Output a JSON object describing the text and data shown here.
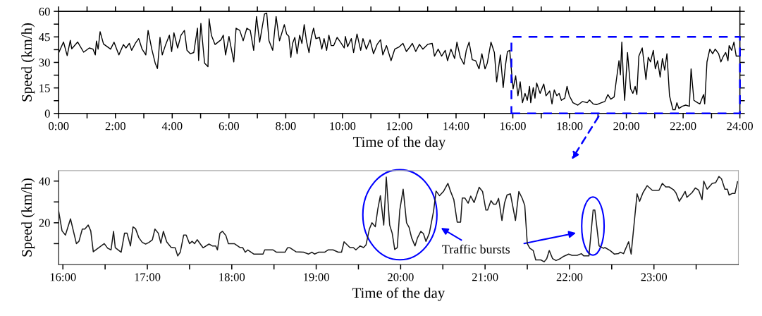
{
  "chart_data": [
    {
      "type": "line",
      "xlabel": "Time of the day",
      "ylabel": "Speed (km/h)",
      "xlim": [
        0,
        24
      ],
      "xticks": [
        {
          "value": 0,
          "label": "0:00"
        },
        {
          "value": 1,
          "label": null
        },
        {
          "value": 2,
          "label": "2:00"
        },
        {
          "value": 3,
          "label": null
        },
        {
          "value": 4,
          "label": "4:00"
        },
        {
          "value": 5,
          "label": null
        },
        {
          "value": 6,
          "label": "6:00"
        },
        {
          "value": 7,
          "label": null
        },
        {
          "value": 8,
          "label": "8:00"
        },
        {
          "value": 9,
          "label": null
        },
        {
          "value": 10,
          "label": "10:00"
        },
        {
          "value": 11,
          "label": null
        },
        {
          "value": 12,
          "label": "12:00"
        },
        {
          "value": 13,
          "label": null
        },
        {
          "value": 14,
          "label": "14:00"
        },
        {
          "value": 15,
          "label": null
        },
        {
          "value": 16,
          "label": "16:00"
        },
        {
          "value": 17,
          "label": null
        },
        {
          "value": 18,
          "label": "18:00"
        },
        {
          "value": 19,
          "label": null
        },
        {
          "value": 20,
          "label": "20:00"
        },
        {
          "value": 21,
          "label": null
        },
        {
          "value": 22,
          "label": "22:00"
        },
        {
          "value": 23,
          "label": null
        },
        {
          "value": 24,
          "label": "24:00"
        }
      ],
      "ylim": [
        0,
        60
      ],
      "yticks": [
        0,
        {
          "value": 7.5,
          "label": null
        },
        15,
        {
          "value": 22.5,
          "label": null
        },
        30,
        {
          "value": 37.5,
          "label": null
        },
        45,
        {
          "value": 52.5,
          "label": null
        },
        60
      ],
      "grid": false,
      "marker": "none",
      "line_style": "solid",
      "series": [
        {
          "color": "#000000",
          "x": [
            0.01,
            0.17,
            0.3,
            0.41,
            0.46,
            0.67,
            0.88,
            1.08,
            1.21,
            1.29,
            1.33,
            1.39,
            1.46,
            1.58,
            1.83,
            1.95,
            2.12,
            2.28,
            2.37,
            2.49,
            2.57,
            2.7,
            2.82,
            2.94,
            3.07,
            3.15,
            3.28,
            3.4,
            3.48,
            3.57,
            3.65,
            3.77,
            3.9,
            3.98,
            4.06,
            4.19,
            4.31,
            4.43,
            4.52,
            4.64,
            4.76,
            4.89,
            4.93,
            5.01,
            5.14,
            5.26,
            5.3,
            5.38,
            5.51,
            5.72,
            5.8,
            5.88,
            6.0,
            6.17,
            6.25,
            6.38,
            6.5,
            6.63,
            6.75,
            6.87,
            6.97,
            7.08,
            7.25,
            7.33,
            7.41,
            7.54,
            7.66,
            7.78,
            7.95,
            8.03,
            8.11,
            8.18,
            8.24,
            8.32,
            8.4,
            8.49,
            8.57,
            8.65,
            8.73,
            8.82,
            8.9,
            8.98,
            9.06,
            9.19,
            9.27,
            9.35,
            9.44,
            9.52,
            9.6,
            9.69,
            9.81,
            9.93,
            10.06,
            10.1,
            10.18,
            10.31,
            10.39,
            10.51,
            10.64,
            10.72,
            10.84,
            10.97,
            11.09,
            11.22,
            11.34,
            11.42,
            11.55,
            11.71,
            11.84,
            12.0,
            12.13,
            12.25,
            12.38,
            12.46,
            12.58,
            12.71,
            12.83,
            13.0,
            13.16,
            13.24,
            13.37,
            13.49,
            13.62,
            13.7,
            13.82,
            13.95,
            14.03,
            14.15,
            14.28,
            14.36,
            14.46,
            14.57,
            14.69,
            14.81,
            14.91,
            15.02,
            15.1,
            15.23,
            15.35,
            15.43,
            15.56,
            15.66,
            15.74,
            15.81,
            15.89,
            15.95,
            16.01,
            16.1,
            16.18,
            16.26,
            16.34,
            16.43,
            16.51,
            16.59,
            16.63,
            16.72,
            16.78,
            16.84,
            16.96,
            17.09,
            17.17,
            17.3,
            17.38,
            17.46,
            17.55,
            17.63,
            17.71,
            17.83,
            17.91,
            17.99,
            18.12,
            18.29,
            18.45,
            18.62,
            18.7,
            18.83,
            18.95,
            19.12,
            19.24,
            19.35,
            19.45,
            19.57,
            19.65,
            19.74,
            19.79,
            19.84,
            19.9,
            19.94,
            20.04,
            20.15,
            20.23,
            20.31,
            20.37,
            20.44,
            20.56,
            20.69,
            20.77,
            20.85,
            20.95,
            21.02,
            21.1,
            21.19,
            21.27,
            21.35,
            21.43,
            21.52,
            21.64,
            21.72,
            21.78,
            21.85,
            21.97,
            22.09,
            22.22,
            22.28,
            22.38,
            22.51,
            22.59,
            22.72,
            22.76,
            22.84,
            22.94,
            23.04,
            23.13,
            23.25,
            23.33,
            23.42,
            23.5,
            23.58,
            23.62,
            23.71,
            23.79,
            23.87,
            23.99
          ],
          "values": [
            36,
            42,
            34,
            43,
            38,
            42,
            36,
            38.5,
            37.8,
            34.4,
            42.6,
            37.8,
            48.1,
            40.8,
            37.8,
            41.9,
            34.4,
            40.5,
            38.5,
            41.2,
            37.1,
            41.2,
            44,
            37.8,
            34.4,
            48.8,
            37.8,
            29.6,
            26.4,
            44.7,
            34.4,
            40.5,
            46,
            36.4,
            47.4,
            38.5,
            46,
            48.8,
            37.1,
            35.1,
            35.8,
            50.1,
            31.1,
            52.9,
            29.6,
            27.5,
            55.6,
            46,
            40.5,
            43.3,
            46,
            34.4,
            45.3,
            30.3,
            50.1,
            48.8,
            42.7,
            50.1,
            48.8,
            37.1,
            57,
            41.9,
            58.4,
            59,
            42.7,
            37.1,
            57,
            42.7,
            52.2,
            46.7,
            45.3,
            33,
            41.2,
            44.7,
            35.1,
            46,
            41.2,
            52.2,
            42.6,
            35.8,
            44.7,
            50.1,
            44,
            44.7,
            37.8,
            44,
            37.1,
            46,
            39.9,
            39.9,
            44.7,
            41.9,
            38.5,
            45.3,
            39.2,
            44,
            35.8,
            46.7,
            37.1,
            44,
            37.8,
            43.3,
            35.1,
            40.6,
            43.3,
            34.4,
            39.9,
            31,
            37.8,
            39.2,
            41.2,
            36.4,
            39.2,
            41.2,
            36.4,
            40.6,
            37.8,
            40.6,
            41.2,
            33.7,
            37.8,
            33.7,
            37.1,
            31,
            37.8,
            32.3,
            41.9,
            33,
            28.9,
            37.1,
            41.9,
            31.6,
            31,
            26.2,
            35.1,
            26.2,
            29.6,
            41.9,
            35.8,
            18.6,
            34.4,
            15.2,
            28.2,
            36.4,
            37.1,
            25.5,
            14.5,
            22.1,
            10.4,
            18.6,
            6.3,
            11.8,
            7.7,
            15.9,
            6.3,
            15.2,
            9,
            17.9,
            11.8,
            17.3,
            10.4,
            13.2,
            5.6,
            13.8,
            10.4,
            11.8,
            7.7,
            9,
            15.9,
            10.4,
            6.3,
            4.9,
            7,
            6.3,
            7.9,
            5.6,
            5.2,
            6.3,
            7,
            11.1,
            8.4,
            9.7,
            20,
            31,
            22.7,
            41.9,
            18.6,
            7.7,
            35.8,
            14.5,
            11.8,
            15.9,
            11.1,
            33.7,
            38.5,
            20,
            33,
            30.3,
            37.1,
            26.2,
            31,
            21.4,
            32.3,
            25.5,
            35.1,
            10.4,
            2.2,
            2.2,
            6.3,
            2.9,
            4.2,
            4.9,
            4.2,
            26.2,
            7.7,
            6.3,
            5.6,
            11.1,
            5.6,
            30.3,
            37.8,
            35.1,
            37.8,
            35.1,
            30.3,
            33.7,
            35.8,
            31,
            39.9,
            37.1,
            41.9,
            33.7,
            33.7
          ]
        }
      ]
    },
    {
      "type": "line",
      "xlabel": "Time of the day",
      "ylabel": "Speed (km/h)",
      "xlim": [
        15.95,
        24
      ],
      "xticks": [
        {
          "value": 16,
          "label": "16:00"
        },
        {
          "value": 16.5,
          "label": null
        },
        {
          "value": 17,
          "label": "17:00"
        },
        {
          "value": 17.5,
          "label": null
        },
        {
          "value": 18,
          "label": "18:00"
        },
        {
          "value": 18.5,
          "label": null
        },
        {
          "value": 19,
          "label": "19:00"
        },
        {
          "value": 19.5,
          "label": null
        },
        {
          "value": 20,
          "label": "20:00"
        },
        {
          "value": 20.5,
          "label": null
        },
        {
          "value": 21,
          "label": "21:00"
        },
        {
          "value": 21.5,
          "label": null
        },
        {
          "value": 22,
          "label": "22:00"
        },
        {
          "value": 22.5,
          "label": null
        },
        {
          "value": 23,
          "label": "23:00"
        },
        {
          "value": 23.5,
          "label": null
        }
      ],
      "ylim": [
        0,
        45
      ],
      "yticks": [
        {
          "value": 10,
          "label": null
        },
        20,
        {
          "value": 30,
          "label": null
        },
        40
      ],
      "grid": false,
      "marker": "none",
      "line_style": "solid",
      "annotations": [
        "Traffic bursts"
      ],
      "series": [
        {
          "color": "#1a1a1a",
          "x": [
            15.95,
            15.99,
            16.03,
            16.09,
            16.16,
            16.19,
            16.23,
            16.26,
            16.3,
            16.33,
            16.36,
            16.49,
            16.53,
            16.57,
            16.6,
            16.62,
            16.69,
            16.73,
            16.76,
            16.8,
            16.83,
            16.86,
            16.9,
            16.94,
            16.98,
            17.02,
            17.06,
            17.09,
            17.13,
            17.16,
            17.19,
            17.23,
            17.28,
            17.31,
            17.33,
            17.36,
            17.39,
            17.43,
            17.46,
            17.5,
            17.53,
            17.56,
            17.59,
            17.66,
            17.73,
            17.77,
            17.81,
            17.83,
            17.86,
            17.89,
            17.93,
            17.96,
            18.03,
            18.1,
            18.13,
            18.16,
            18.19,
            18.26,
            18.37,
            18.39,
            18.49,
            18.53,
            18.63,
            18.66,
            18.69,
            18.76,
            18.85,
            18.91,
            18.95,
            18.98,
            19.03,
            19.1,
            19.14,
            19.2,
            19.26,
            19.3,
            19.33,
            19.4,
            19.44,
            19.47,
            19.52,
            19.56,
            19.59,
            19.63,
            19.66,
            19.7,
            19.73,
            19.76,
            19.8,
            19.83,
            19.87,
            19.9,
            19.93,
            19.96,
            19.99,
            20.03,
            20.07,
            20.1,
            20.13,
            20.17,
            20.2,
            20.24,
            20.27,
            20.3,
            20.34,
            20.39,
            20.42,
            20.46,
            20.51,
            20.56,
            20.59,
            20.63,
            20.67,
            20.71,
            20.73,
            20.76,
            20.8,
            20.83,
            20.87,
            20.93,
            20.97,
            21.01,
            21.03,
            21.07,
            21.1,
            21.13,
            21.16,
            21.2,
            21.23,
            21.26,
            21.3,
            21.36,
            21.4,
            21.44,
            21.47,
            21.5,
            21.53,
            21.57,
            21.6,
            21.66,
            21.7,
            21.73,
            21.76,
            21.8,
            21.84,
            21.89,
            21.93,
            21.99,
            22.03,
            22.09,
            22.14,
            22.17,
            22.23,
            22.28,
            22.3,
            22.35,
            22.4,
            22.42,
            22.48,
            22.53,
            22.58,
            22.6,
            22.64,
            22.7,
            22.73,
            22.8,
            22.83,
            22.87,
            22.92,
            22.98,
            23.06,
            23.1,
            23.14,
            23.18,
            23.23,
            23.26,
            23.3,
            23.33,
            23.37,
            23.39,
            23.45,
            23.49,
            23.53,
            23.57,
            23.59,
            23.63,
            23.69,
            23.73,
            23.77,
            23.8,
            23.84,
            23.87,
            23.89,
            23.93,
            23.96,
            23.99
          ],
          "values": [
            25.6,
            16.1,
            14.1,
            21.9,
            10,
            11.1,
            17,
            17,
            18.9,
            16.1,
            6.1,
            10,
            7.8,
            7,
            15.9,
            8.1,
            5.9,
            15,
            15,
            8.9,
            18,
            17.2,
            12.8,
            10.6,
            9.8,
            10.6,
            11.9,
            17,
            15,
            10.2,
            15.9,
            10.8,
            8.3,
            8,
            8,
            4.1,
            5.9,
            14.1,
            14.1,
            10,
            11.1,
            10,
            11.9,
            8,
            9.8,
            8.9,
            8.9,
            7,
            15,
            15.9,
            13.9,
            10,
            10,
            8.1,
            8.1,
            5.9,
            7,
            5,
            5,
            7,
            7,
            5.9,
            5.9,
            8,
            8,
            6.1,
            5.9,
            5,
            5.9,
            5,
            5.9,
            5.9,
            7,
            7,
            5.9,
            5.9,
            10.9,
            8.1,
            8.1,
            7,
            8.9,
            8.1,
            9.4,
            17,
            20,
            18.1,
            26.7,
            33,
            18.9,
            41.9,
            18.9,
            15,
            7.2,
            8.1,
            26.1,
            36.1,
            20,
            17.8,
            12.8,
            8.9,
            12.8,
            15.9,
            14.8,
            11.1,
            15,
            25.6,
            35.2,
            33,
            35.2,
            38.9,
            35.2,
            31.1,
            20.3,
            20.3,
            31.9,
            31.9,
            29.4,
            32.8,
            29.7,
            37,
            35,
            26.1,
            26.1,
            30.6,
            28.9,
            28.9,
            31.7,
            21.1,
            29.4,
            33.3,
            33.9,
            21.1,
            35,
            31.7,
            28.3,
            10,
            7.8,
            6.7,
            2.2,
            2.2,
            1.3,
            2.8,
            6.7,
            2.8,
            1.9,
            2.8,
            3.9,
            5,
            4.4,
            4.4,
            5.2,
            4.1,
            4.1,
            26.1,
            26.1,
            8.9,
            7.8,
            8.1,
            6.7,
            5,
            5.2,
            5.9,
            5.2,
            10.9,
            5,
            33.9,
            30.3,
            34.4,
            37.8,
            35.6,
            35.6,
            38.9,
            37.2,
            37.2,
            35.9,
            34.4,
            30.3,
            32.2,
            35,
            32.2,
            34.4,
            36.7,
            35.6,
            31.1,
            40,
            36.1,
            38.9,
            39.2,
            42.2,
            41.1,
            36.1,
            36.1,
            33.3,
            34.1,
            34.1,
            39.7
          ]
        }
      ]
    }
  ]
}
